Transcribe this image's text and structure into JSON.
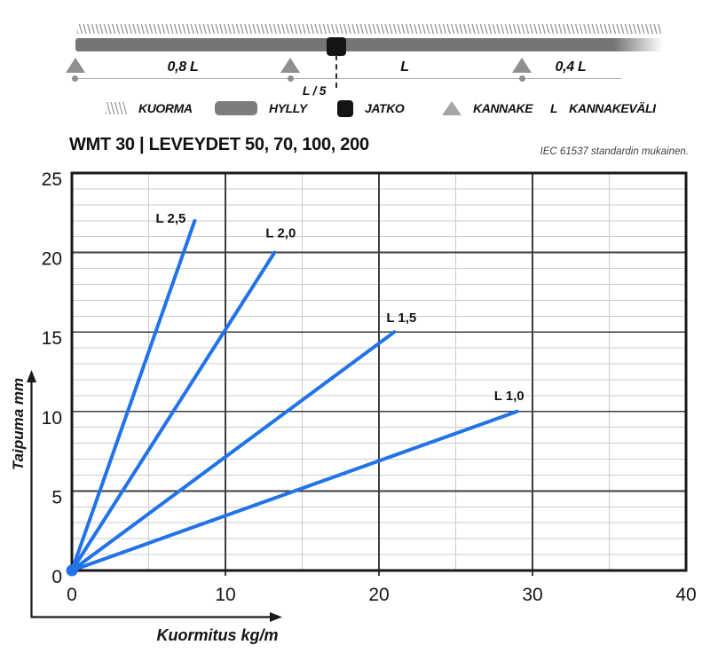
{
  "schematic": {
    "labels": {
      "left_span": "0,8 L",
      "middle_span": "L",
      "right_span": "0,4 L",
      "joint_offset": "L / 5"
    }
  },
  "legend": {
    "items": [
      {
        "id": "kuorma",
        "label": "KUORMA"
      },
      {
        "id": "hylly",
        "label": "HYLLY"
      },
      {
        "id": "jatko",
        "label": "JATKO"
      },
      {
        "id": "kannake",
        "label": "KANNAKE"
      },
      {
        "id": "kannakevali",
        "symbol": "L",
        "label": "KANNAKEVÄLI"
      }
    ]
  },
  "chart_data": {
    "type": "line",
    "title": "WMT 30 | LEVEYDET 50, 70, 100, 200",
    "note": "IEC 61537 standardin mukainen.",
    "xlabel": "Kuormitus kg/m",
    "ylabel": "Taipuma mm",
    "xlim": [
      0,
      40
    ],
    "ylim": [
      0,
      25
    ],
    "xticks": [
      0,
      10,
      20,
      30,
      40
    ],
    "yticks": [
      0,
      5,
      10,
      15,
      20,
      25
    ],
    "x_minor_step": 5,
    "x_major_step": 10,
    "y_minor_step": 1,
    "y_major_step": 5,
    "grid": true,
    "legend_position": "labels-at-line-ends",
    "colors": {
      "line": "#2173e8",
      "grid_minor": "#cbcbcb",
      "grid_major": "#3e3e3e",
      "frame": "#191919",
      "axis_arrow": "#1a1a1a"
    },
    "origin_marker": {
      "x": 0,
      "y": 0
    },
    "series": [
      {
        "name": "L 2,5",
        "points": [
          [
            0,
            0
          ],
          [
            8,
            22
          ]
        ],
        "label_anchor": "end",
        "label_offset": [
          -10,
          2
        ]
      },
      {
        "name": "L 2,0",
        "points": [
          [
            0,
            0
          ],
          [
            13.2,
            20
          ]
        ],
        "label_anchor": "middle",
        "label_offset": [
          7,
          -17
        ]
      },
      {
        "name": "L 1,5",
        "points": [
          [
            0,
            0
          ],
          [
            21,
            15
          ]
        ],
        "label_anchor": "middle",
        "label_offset": [
          8,
          -11
        ]
      },
      {
        "name": "L 1,0",
        "points": [
          [
            0,
            0
          ],
          [
            29,
            10
          ]
        ],
        "label_anchor": "middle",
        "label_offset": [
          -9,
          -13
        ]
      }
    ]
  }
}
